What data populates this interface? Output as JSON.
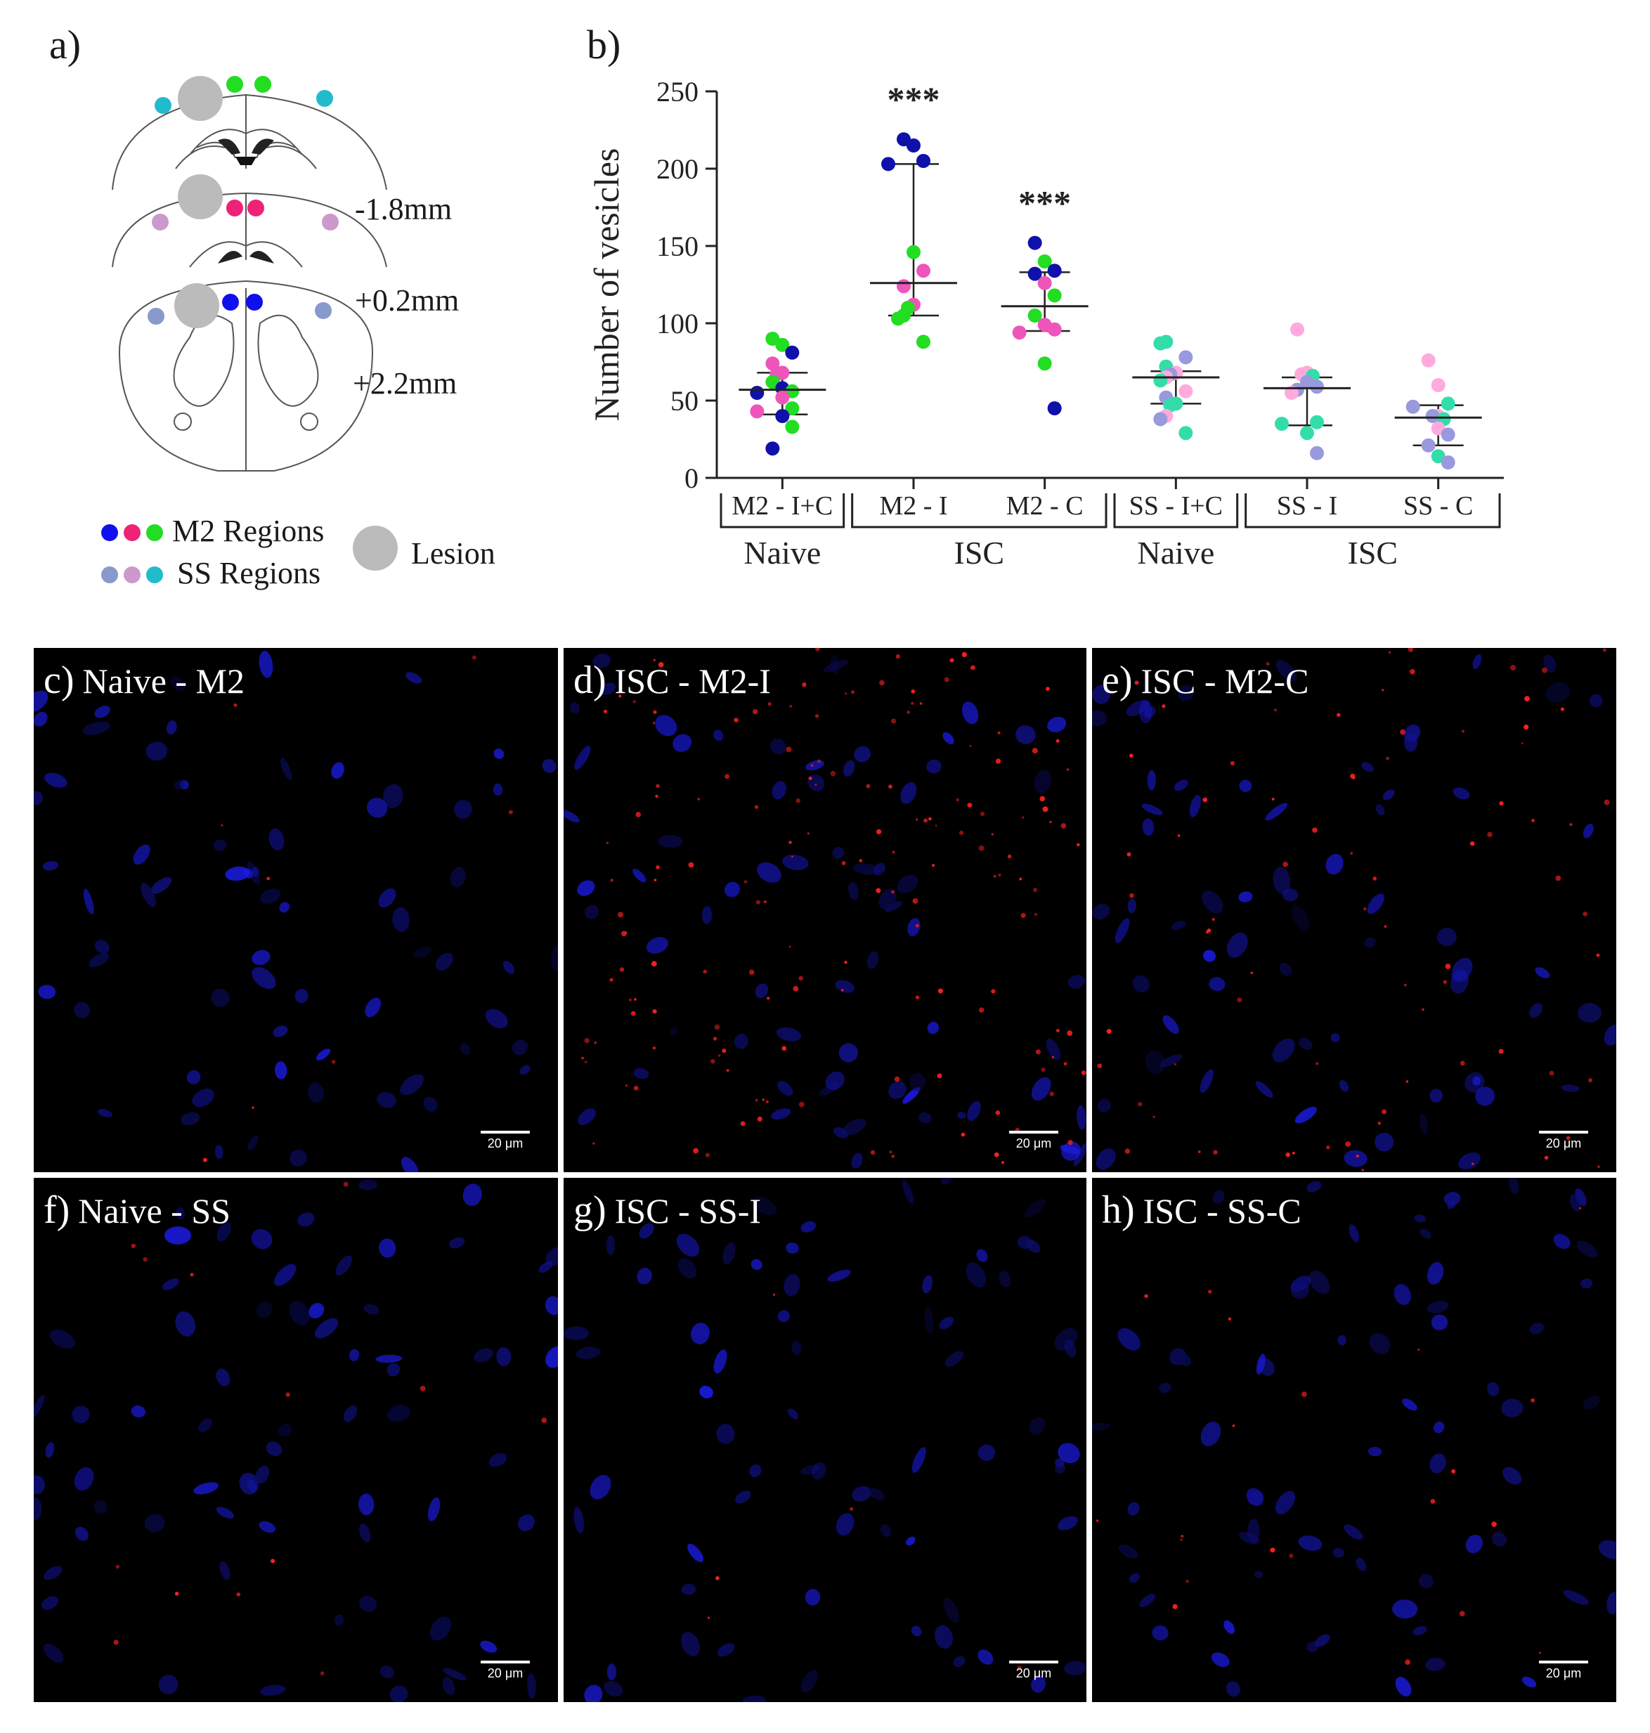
{
  "panels": {
    "a": "a)",
    "b": "b)"
  },
  "brain_diagram": {
    "coordinates": [
      "-1.8mm",
      "+0.2mm",
      "+2.2mm"
    ],
    "legend": {
      "m2_label": "M2 Regions",
      "ss_label": "SS Regions",
      "lesion_label": "Lesion"
    },
    "colors": {
      "m2_minus18": "#22dd22",
      "m2_plus02": "#ee2277",
      "m2_plus22": "#1010ee",
      "ss_minus18": "#22bbcc",
      "ss_plus02": "#cc99cc",
      "ss_plus22": "#8899cc",
      "lesion": "#bbbbbb"
    }
  },
  "chart_data": {
    "type": "scatter",
    "ylabel": "Number of vesicles",
    "xlabel": "",
    "ylim": [
      0,
      250
    ],
    "yticks": [
      0,
      50,
      100,
      150,
      200,
      250
    ],
    "categories": [
      "M2 - I+C",
      "M2 - I",
      "M2 - C",
      "SS - I+C",
      "SS - I",
      "SS - C"
    ],
    "groups": [
      {
        "label": "Naive",
        "categories": [
          "M2 - I+C"
        ]
      },
      {
        "label": "ISC",
        "categories": [
          "M2 - I",
          "M2 - C"
        ]
      },
      {
        "label": "Naive",
        "categories": [
          "SS - I+C"
        ]
      },
      {
        "label": "ISC",
        "categories": [
          "SS - I",
          "SS - C"
        ]
      }
    ],
    "median": [
      57,
      126,
      111,
      65,
      58,
      39
    ],
    "q1": [
      41,
      105,
      95,
      48,
      34,
      21
    ],
    "q3": [
      68,
      203,
      133,
      69,
      65,
      47
    ],
    "significance": [
      "",
      "***",
      "***",
      "",
      "",
      ""
    ],
    "points": [
      [
        {
          "y": 90,
          "c": "#22dd22"
        },
        {
          "y": 86,
          "c": "#22dd22"
        },
        {
          "y": 81,
          "c": "#1010aa"
        },
        {
          "y": 74,
          "c": "#ee55bb"
        },
        {
          "y": 68,
          "c": "#ee55bb"
        },
        {
          "y": 67,
          "c": "#ee55bb"
        },
        {
          "y": 62,
          "c": "#22dd22"
        },
        {
          "y": 58,
          "c": "#1010aa"
        },
        {
          "y": 56,
          "c": "#22dd22"
        },
        {
          "y": 55,
          "c": "#1010aa"
        },
        {
          "y": 52,
          "c": "#ee55bb"
        },
        {
          "y": 45,
          "c": "#22dd22"
        },
        {
          "y": 43,
          "c": "#ee55bb"
        },
        {
          "y": 40,
          "c": "#1010aa"
        },
        {
          "y": 33,
          "c": "#22dd22"
        },
        {
          "y": 19,
          "c": "#1010aa"
        }
      ],
      [
        {
          "y": 219,
          "c": "#1010aa"
        },
        {
          "y": 215,
          "c": "#1010aa"
        },
        {
          "y": 205,
          "c": "#1010aa"
        },
        {
          "y": 203,
          "c": "#1010aa"
        },
        {
          "y": 146,
          "c": "#22dd22"
        },
        {
          "y": 134,
          "c": "#ee55bb"
        },
        {
          "y": 124,
          "c": "#ee55bb"
        },
        {
          "y": 112,
          "c": "#ee55bb"
        },
        {
          "y": 110,
          "c": "#22dd22"
        },
        {
          "y": 105,
          "c": "#22dd22"
        },
        {
          "y": 103,
          "c": "#22dd22"
        },
        {
          "y": 88,
          "c": "#22dd22"
        }
      ],
      [
        {
          "y": 152,
          "c": "#1010aa"
        },
        {
          "y": 140,
          "c": "#22dd22"
        },
        {
          "y": 134,
          "c": "#1010aa"
        },
        {
          "y": 132,
          "c": "#1010aa"
        },
        {
          "y": 126,
          "c": "#ee55bb"
        },
        {
          "y": 118,
          "c": "#22dd22"
        },
        {
          "y": 105,
          "c": "#22dd22"
        },
        {
          "y": 99,
          "c": "#ee55bb"
        },
        {
          "y": 96,
          "c": "#ee55bb"
        },
        {
          "y": 94,
          "c": "#ee55bb"
        },
        {
          "y": 74,
          "c": "#22dd22"
        },
        {
          "y": 45,
          "c": "#1010aa"
        }
      ],
      [
        {
          "y": 88,
          "c": "#33ddaa"
        },
        {
          "y": 87,
          "c": "#33ddaa"
        },
        {
          "y": 78,
          "c": "#9999dd"
        },
        {
          "y": 72,
          "c": "#33ddaa"
        },
        {
          "y": 68,
          "c": "#ffaadd"
        },
        {
          "y": 67,
          "c": "#9999dd"
        },
        {
          "y": 65,
          "c": "#ffaadd"
        },
        {
          "y": 63,
          "c": "#33ddaa"
        },
        {
          "y": 56,
          "c": "#ffaadd"
        },
        {
          "y": 52,
          "c": "#9999dd"
        },
        {
          "y": 48,
          "c": "#33ddaa"
        },
        {
          "y": 47,
          "c": "#33ddaa"
        },
        {
          "y": 40,
          "c": "#ffaadd"
        },
        {
          "y": 38,
          "c": "#9999dd"
        },
        {
          "y": 29,
          "c": "#33ddaa"
        }
      ],
      [
        {
          "y": 96,
          "c": "#ffaadd"
        },
        {
          "y": 68,
          "c": "#ffaadd"
        },
        {
          "y": 67,
          "c": "#ffaadd"
        },
        {
          "y": 66,
          "c": "#33ddaa"
        },
        {
          "y": 62,
          "c": "#9999dd"
        },
        {
          "y": 59,
          "c": "#9999dd"
        },
        {
          "y": 57,
          "c": "#9999dd"
        },
        {
          "y": 55,
          "c": "#ffaadd"
        },
        {
          "y": 36,
          "c": "#33ddaa"
        },
        {
          "y": 35,
          "c": "#33ddaa"
        },
        {
          "y": 29,
          "c": "#33ddaa"
        },
        {
          "y": 16,
          "c": "#9999dd"
        }
      ],
      [
        {
          "y": 76,
          "c": "#ffaadd"
        },
        {
          "y": 60,
          "c": "#ffaadd"
        },
        {
          "y": 48,
          "c": "#33ddaa"
        },
        {
          "y": 46,
          "c": "#9999dd"
        },
        {
          "y": 40,
          "c": "#ffaadd"
        },
        {
          "y": 40,
          "c": "#9999dd"
        },
        {
          "y": 38,
          "c": "#33ddaa"
        },
        {
          "y": 32,
          "c": "#ffaadd"
        },
        {
          "y": 28,
          "c": "#9999dd"
        },
        {
          "y": 21,
          "c": "#9999dd"
        },
        {
          "y": 14,
          "c": "#33ddaa"
        },
        {
          "y": 10,
          "c": "#9999dd"
        }
      ]
    ]
  },
  "micrographs": [
    {
      "letter": "c)",
      "label": "Naive - M2",
      "scale": "20 μm",
      "red_level": 0.03
    },
    {
      "letter": "d)",
      "label": "ISC - M2-I",
      "scale": "20 μm",
      "red_level": 0.6
    },
    {
      "letter": "e)",
      "label": "ISC - M2-C",
      "scale": "20 μm",
      "red_level": 0.3
    },
    {
      "letter": "f)",
      "label": "Naive - SS",
      "scale": "20 μm",
      "red_level": 0.05
    },
    {
      "letter": "g)",
      "label": "ISC - SS-I",
      "scale": "20 μm",
      "red_level": 0.02
    },
    {
      "letter": "h)",
      "label": "ISC - SS-C",
      "scale": "20 μm",
      "red_level": 0.08
    }
  ]
}
